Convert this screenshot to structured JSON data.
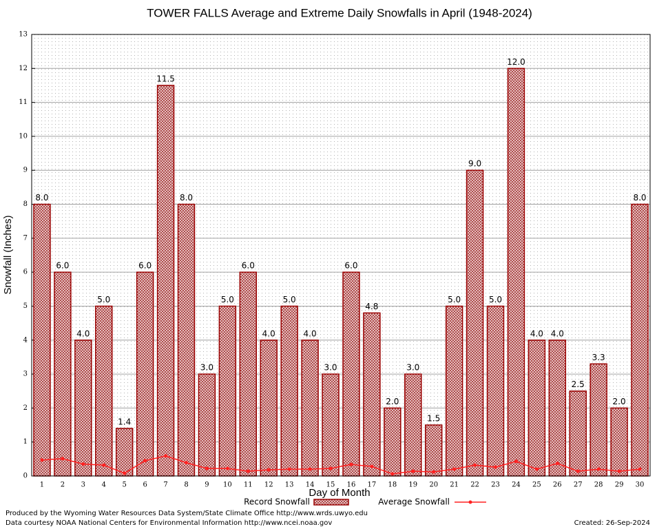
{
  "chart_data": {
    "type": "bar-line",
    "title": "TOWER FALLS Average and Extreme Daily Snowfalls in April (1948-2024)",
    "x_label": "Day of Month",
    "y_label": "Snowfall (Inches)",
    "categories": [
      "1",
      "2",
      "3",
      "4",
      "5",
      "6",
      "7",
      "8",
      "9",
      "10",
      "11",
      "12",
      "13",
      "14",
      "15",
      "16",
      "17",
      "18",
      "19",
      "20",
      "21",
      "22",
      "23",
      "24",
      "25",
      "26",
      "27",
      "28",
      "29",
      "30"
    ],
    "series": [
      {
        "name": "Record Snowfall",
        "type": "bar",
        "color": "#990000",
        "values": [
          8,
          6,
          4,
          5,
          1.4,
          6,
          11.5,
          8,
          3,
          5,
          6,
          4,
          5,
          4,
          3,
          6,
          4.8,
          2,
          3,
          1.5,
          5,
          9,
          5,
          12,
          4,
          4,
          2.5,
          3.3,
          2,
          8
        ],
        "value_labels": [
          "8.0",
          "6.0",
          "4.0",
          "5.0",
          "1.4",
          "6.0",
          "11.5",
          "8.0",
          "3.0",
          "5.0",
          "6.0",
          "4.0",
          "5.0",
          "4.0",
          "3.0",
          "6.0",
          "4.8",
          "2.0",
          "3.0",
          "1.5",
          "5.0",
          "9.0",
          "5.0",
          "12.0",
          "4.0",
          "4.0",
          "2.5",
          "3.3",
          "2.0",
          "8.0"
        ]
      },
      {
        "name": "Average Snowfall",
        "type": "line",
        "color": "#ff2020",
        "values": [
          0.47,
          0.51,
          0.35,
          0.32,
          0.08,
          0.45,
          0.59,
          0.39,
          0.22,
          0.22,
          0.14,
          0.18,
          0.2,
          0.2,
          0.22,
          0.34,
          0.28,
          0.06,
          0.14,
          0.12,
          0.2,
          0.32,
          0.26,
          0.43,
          0.2,
          0.37,
          0.14,
          0.2,
          0.14,
          0.2
        ]
      }
    ],
    "ylim": [
      0,
      13
    ],
    "yticks": [
      0,
      1,
      2,
      3,
      4,
      5,
      6,
      7,
      8,
      9,
      10,
      11,
      12,
      13
    ],
    "grid": true,
    "legend": "bottom",
    "footer": [
      "Produced by the Wyoming Water Resources Data System/State Climate Office http://www.wrds.uwyo.edu",
      "Data courtesy NOAA National Centers for Environmental Information http://www.ncei.noaa.gov"
    ],
    "created": "Created:  26-Sep-2024"
  }
}
